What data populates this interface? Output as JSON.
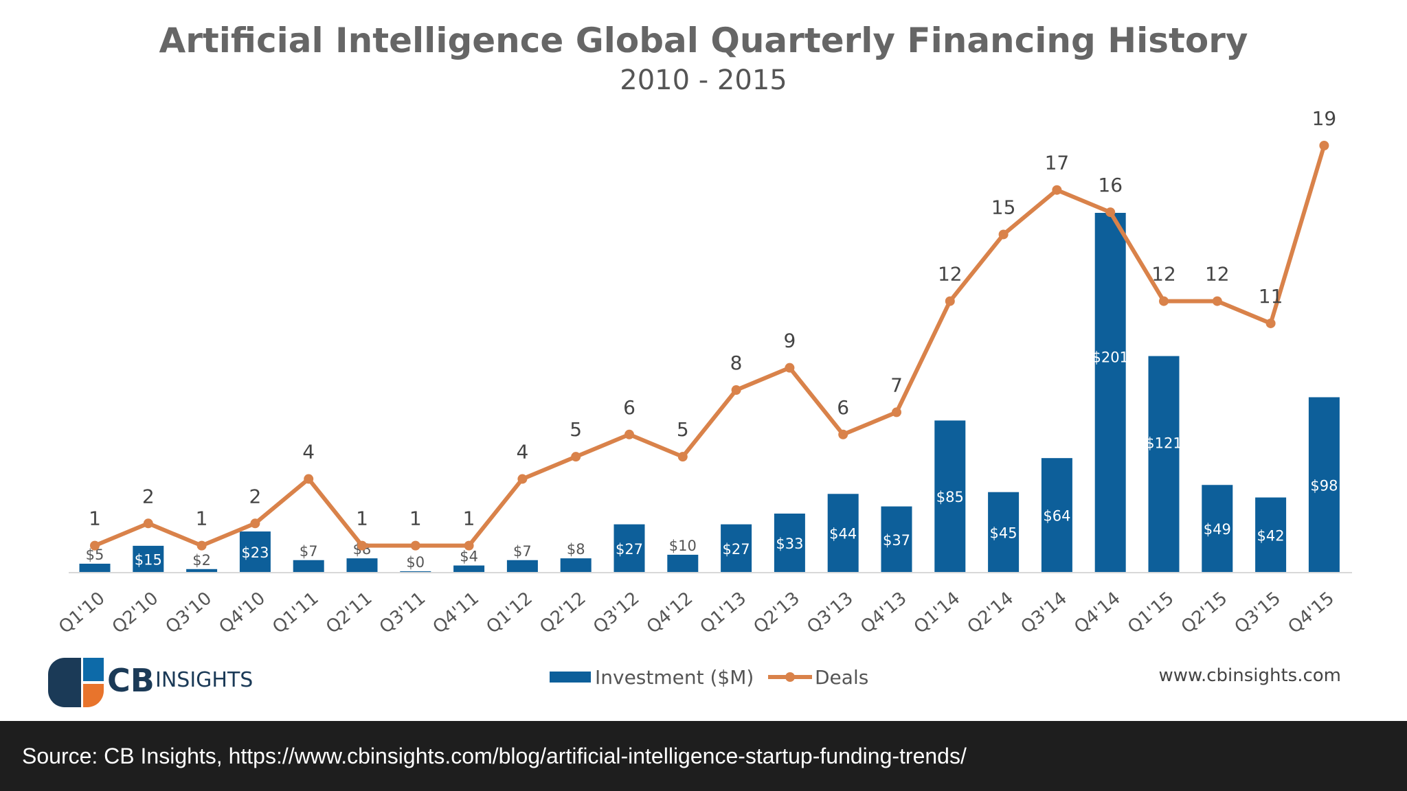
{
  "chart_data": {
    "type": "bar",
    "title": "Artificial Intelligence Global Quarterly Financing History",
    "subtitle": "2010 - 2015",
    "categories": [
      "Q1'10",
      "Q2'10",
      "Q3'10",
      "Q4'10",
      "Q1'11",
      "Q2'11",
      "Q3'11",
      "Q4'11",
      "Q1'12",
      "Q2'12",
      "Q3'12",
      "Q4'12",
      "Q1'13",
      "Q2'13",
      "Q3'13",
      "Q4'13",
      "Q1'14",
      "Q2'14",
      "Q3'14",
      "Q4'14",
      "Q1'15",
      "Q2'15",
      "Q3'15",
      "Q4'15"
    ],
    "series": [
      {
        "name": "Investment ($M)",
        "type": "bar",
        "color": "#0d5f9a",
        "values": [
          5,
          15,
          2,
          23,
          7,
          8,
          0,
          4,
          7,
          8,
          27,
          10,
          27,
          33,
          44,
          37,
          85,
          45,
          64,
          201,
          121,
          49,
          42,
          98
        ],
        "labels": [
          "$5",
          "$15",
          "$2",
          "$23",
          "$7",
          "$8",
          "$0",
          "$4",
          "$7",
          "$8",
          "$27",
          "$10",
          "$27",
          "$33",
          "$44",
          "$37",
          "$85",
          "$45",
          "$64",
          "$201",
          "$121",
          "$49",
          "$42",
          "$98"
        ]
      },
      {
        "name": "Deals",
        "type": "line",
        "color": "#d9824a",
        "values": [
          1,
          2,
          1,
          2,
          4,
          1,
          1,
          1,
          4,
          5,
          6,
          5,
          8,
          9,
          6,
          7,
          12,
          15,
          17,
          16,
          12,
          12,
          11,
          19
        ]
      }
    ],
    "xlabel": "",
    "ylabel": "",
    "bar_ylim": [
      0,
      201
    ],
    "deals_ylim": [
      0,
      19
    ],
    "grid": false,
    "legend_position": "bottom-center"
  },
  "logo": {
    "cb": "CB",
    "insights": "INSIGHTS"
  },
  "website": "www.cbinsights.com",
  "source": "Source: CB Insights, https://www.cbinsights.com/blog/artificial-intelligence-startup-funding-trends/",
  "colors": {
    "bar": "#0d5f9a",
    "line": "#d9824a",
    "source_bg": "#1e1e1e"
  }
}
